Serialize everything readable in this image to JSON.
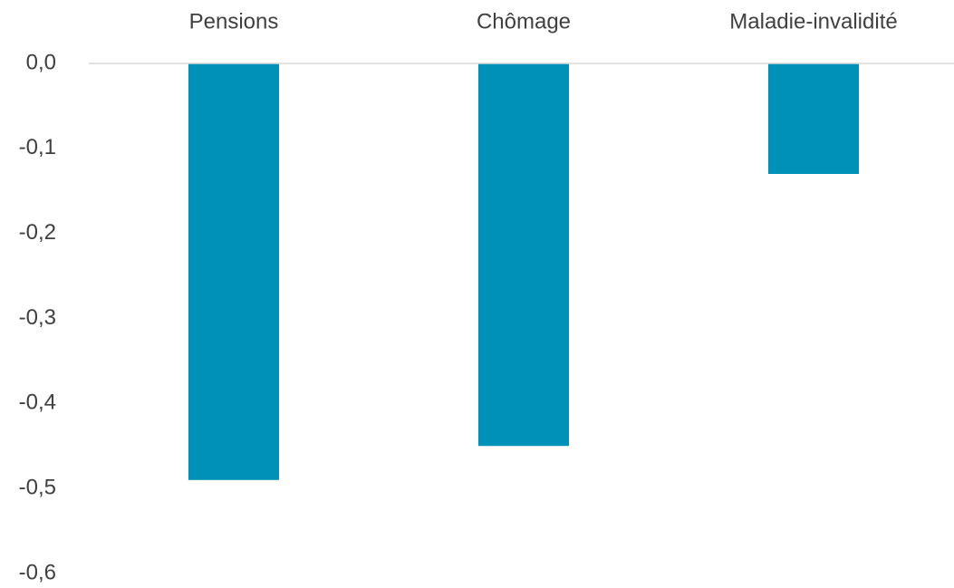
{
  "chart_data": {
    "type": "bar",
    "categories": [
      "Pensions",
      "Chômage",
      "Maladie-invalidité"
    ],
    "values": [
      -0.49,
      -0.45,
      -0.13
    ],
    "color": "#0091b8",
    "ylim": [
      -0.6,
      0
    ],
    "yticks": [
      {
        "value": 0,
        "label": "0,0"
      },
      {
        "value": -0.1,
        "label": "-0,1"
      },
      {
        "value": -0.2,
        "label": "-0,2"
      },
      {
        "value": -0.3,
        "label": "-0,3"
      },
      {
        "value": -0.4,
        "label": "-0,4"
      },
      {
        "value": -0.5,
        "label": "-0,5"
      },
      {
        "value": -0.6,
        "label": "-0,6"
      }
    ],
    "grid": false
  }
}
